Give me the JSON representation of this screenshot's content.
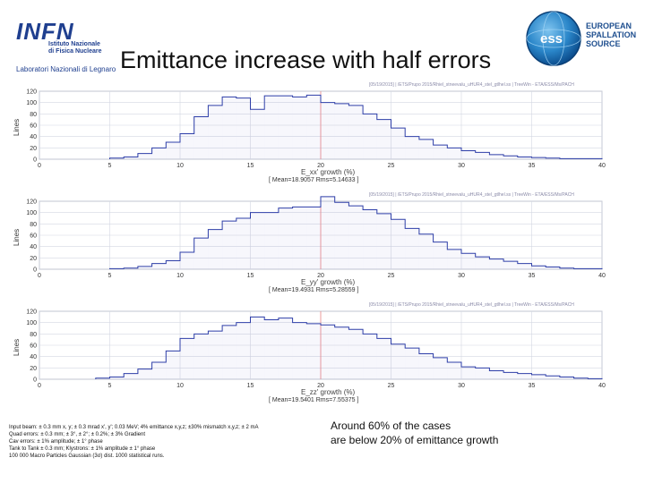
{
  "slide": {
    "title": "Emittance increase with half errors",
    "logo_left": {
      "word": "INFN",
      "line1": "Istituto Nazionale",
      "line2": "di Fisica Nucleare",
      "lab": "Laboratori Nazionali di Legnaro"
    },
    "logo_right": {
      "line1": "EUROPEAN",
      "line2": "SPALLATION",
      "line3": "SOURCE",
      "mark": "ess"
    },
    "notes": [
      "Input beam: ± 0.3 mm x, y; ± 0.3 mrad x', y'; 0.03 MeV; 4% emittance x,y,z; ±30% mismatch x,y,z; ± 2 mA",
      "Quad errors: ± 0.3 mm; ± 3°, ± 2°; ± 0.2%; ± 3% Gradient",
      "Cav errors: ± 1% amplitude; ± 1° phase",
      "Tank to Tank ± 0.3 mm; Klystrons: ± 1% amplitude ± 1° phase",
      "100 000 Macro Particles Gaussian (3σ) dist. 1000 statistical runs."
    ],
    "remark": [
      "Around 60% of the cases",
      "are below 20% of emittance growth"
    ]
  },
  "chart_data": [
    {
      "type": "bar",
      "histogram": true,
      "header": "[05/19/2015] | /ETS/Prupo 2015/Rhiel_stneevalu_uHUR4_stel_gtlhel.ss | TreeWin - ETA/ESS/Ms/PACH",
      "ylabel": "Lines",
      "xlabel": "E_xx' growth (%)",
      "stats": "[ Mean=18.9057 Rms=5.14633 ]",
      "xlim": [
        0,
        40
      ],
      "ylim": [
        0,
        120
      ],
      "xticks": [
        0,
        5,
        10,
        15,
        20,
        25,
        30,
        35,
        40
      ],
      "yticks": [
        0,
        20,
        40,
        60,
        80,
        100,
        120
      ],
      "bin_width": 1,
      "x": [
        5,
        6,
        7,
        8,
        9,
        10,
        11,
        12,
        13,
        14,
        15,
        16,
        17,
        18,
        19,
        20,
        21,
        22,
        23,
        24,
        25,
        26,
        27,
        28,
        29,
        30,
        31,
        32,
        33,
        34,
        35,
        36,
        37,
        38,
        39
      ],
      "values": [
        2,
        4,
        10,
        20,
        30,
        45,
        75,
        95,
        110,
        108,
        88,
        112,
        112,
        110,
        113,
        100,
        98,
        95,
        80,
        70,
        55,
        40,
        35,
        25,
        20,
        15,
        12,
        8,
        6,
        4,
        3,
        2,
        1,
        1,
        1
      ]
    },
    {
      "type": "bar",
      "histogram": true,
      "header": "[05/19/2015] | /ETS/Prupo 2015/Rhiel_stneevalu_uHUR4_stel_gtlhel.ss | TreeWin - ETA/ESS/Ms/PACH",
      "ylabel": "Lines",
      "xlabel": "E_yy' growth (%)",
      "stats": "[ Mean=19.4931 Rms=5.28559 ]",
      "xlim": [
        0,
        40
      ],
      "ylim": [
        0,
        120
      ],
      "xticks": [
        0,
        5,
        10,
        15,
        20,
        25,
        30,
        35,
        40
      ],
      "yticks": [
        0,
        20,
        40,
        60,
        80,
        100,
        120
      ],
      "bin_width": 1,
      "x": [
        5,
        6,
        7,
        8,
        9,
        10,
        11,
        12,
        13,
        14,
        15,
        16,
        17,
        18,
        19,
        20,
        21,
        22,
        23,
        24,
        25,
        26,
        27,
        28,
        29,
        30,
        31,
        32,
        33,
        34,
        35,
        36,
        37,
        38,
        39
      ],
      "values": [
        1,
        2,
        5,
        10,
        15,
        30,
        55,
        70,
        85,
        90,
        100,
        100,
        108,
        110,
        110,
        128,
        118,
        112,
        105,
        98,
        88,
        72,
        62,
        48,
        35,
        28,
        22,
        18,
        14,
        10,
        6,
        4,
        2,
        1,
        1
      ]
    },
    {
      "type": "bar",
      "histogram": true,
      "header": "[05/19/2015] | /ETS/Prupo 2015/Rhiel_stneevalu_uHUR4_stel_gtlhel.ss | TreeWin - ETA/ESS/Ms/PACH",
      "ylabel": "Lines",
      "xlabel": "E_zz' growth (%)",
      "stats": "[ Mean=19.5401 Rms=7.55375 ]",
      "xlim": [
        0,
        40
      ],
      "ylim": [
        0,
        120
      ],
      "xticks": [
        0,
        5,
        10,
        15,
        20,
        25,
        30,
        35,
        40
      ],
      "yticks": [
        0,
        20,
        40,
        60,
        80,
        100,
        120
      ],
      "bin_width": 1,
      "x": [
        4,
        5,
        6,
        7,
        8,
        9,
        10,
        11,
        12,
        13,
        14,
        15,
        16,
        17,
        18,
        19,
        20,
        21,
        22,
        23,
        24,
        25,
        26,
        27,
        28,
        29,
        30,
        31,
        32,
        33,
        34,
        35,
        36,
        37,
        38,
        39
      ],
      "values": [
        2,
        4,
        10,
        18,
        30,
        50,
        72,
        80,
        85,
        95,
        100,
        110,
        105,
        108,
        100,
        98,
        96,
        92,
        88,
        80,
        72,
        62,
        55,
        45,
        38,
        30,
        22,
        20,
        15,
        12,
        10,
        8,
        6,
        4,
        2,
        1
      ]
    }
  ]
}
